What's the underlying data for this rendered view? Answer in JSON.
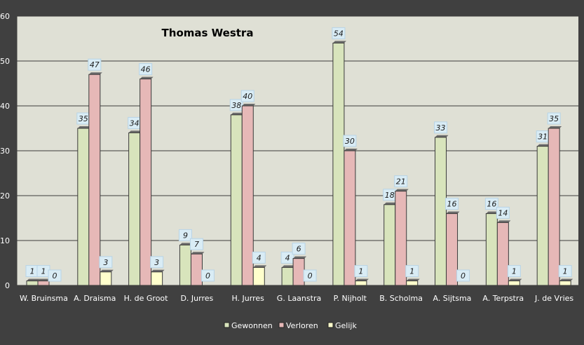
{
  "chart_data": {
    "type": "bar",
    "title": "Thomas Westra",
    "categories": [
      "W. Bruinsma",
      "A. Draisma",
      "H. de Groot",
      "D. Jurres",
      "H. Jurres",
      "G. Laanstra",
      "P. Nijholt",
      "B. Scholma",
      "A. Sijtsma",
      "A. Terpstra",
      "J. de Vries"
    ],
    "series": [
      {
        "name": "Gewonnen",
        "values": [
          1,
          35,
          34,
          9,
          38,
          4,
          54,
          18,
          33,
          16,
          31
        ],
        "color": "#d8e4bc"
      },
      {
        "name": "Verloren",
        "values": [
          1,
          47,
          46,
          7,
          40,
          6,
          30,
          21,
          16,
          14,
          35
        ],
        "color": "#e6b8b7"
      },
      {
        "name": "Gelijk",
        "values": [
          0,
          3,
          3,
          0,
          4,
          0,
          1,
          1,
          0,
          1,
          1
        ],
        "color": "#ffffcc"
      }
    ],
    "ylim": [
      0,
      60
    ],
    "yticks": [
      0,
      10,
      20,
      30,
      40,
      50,
      60
    ],
    "grid": true,
    "legend": "bottom",
    "plot_background": "#dfe0d5",
    "frame_background": "#404040"
  }
}
